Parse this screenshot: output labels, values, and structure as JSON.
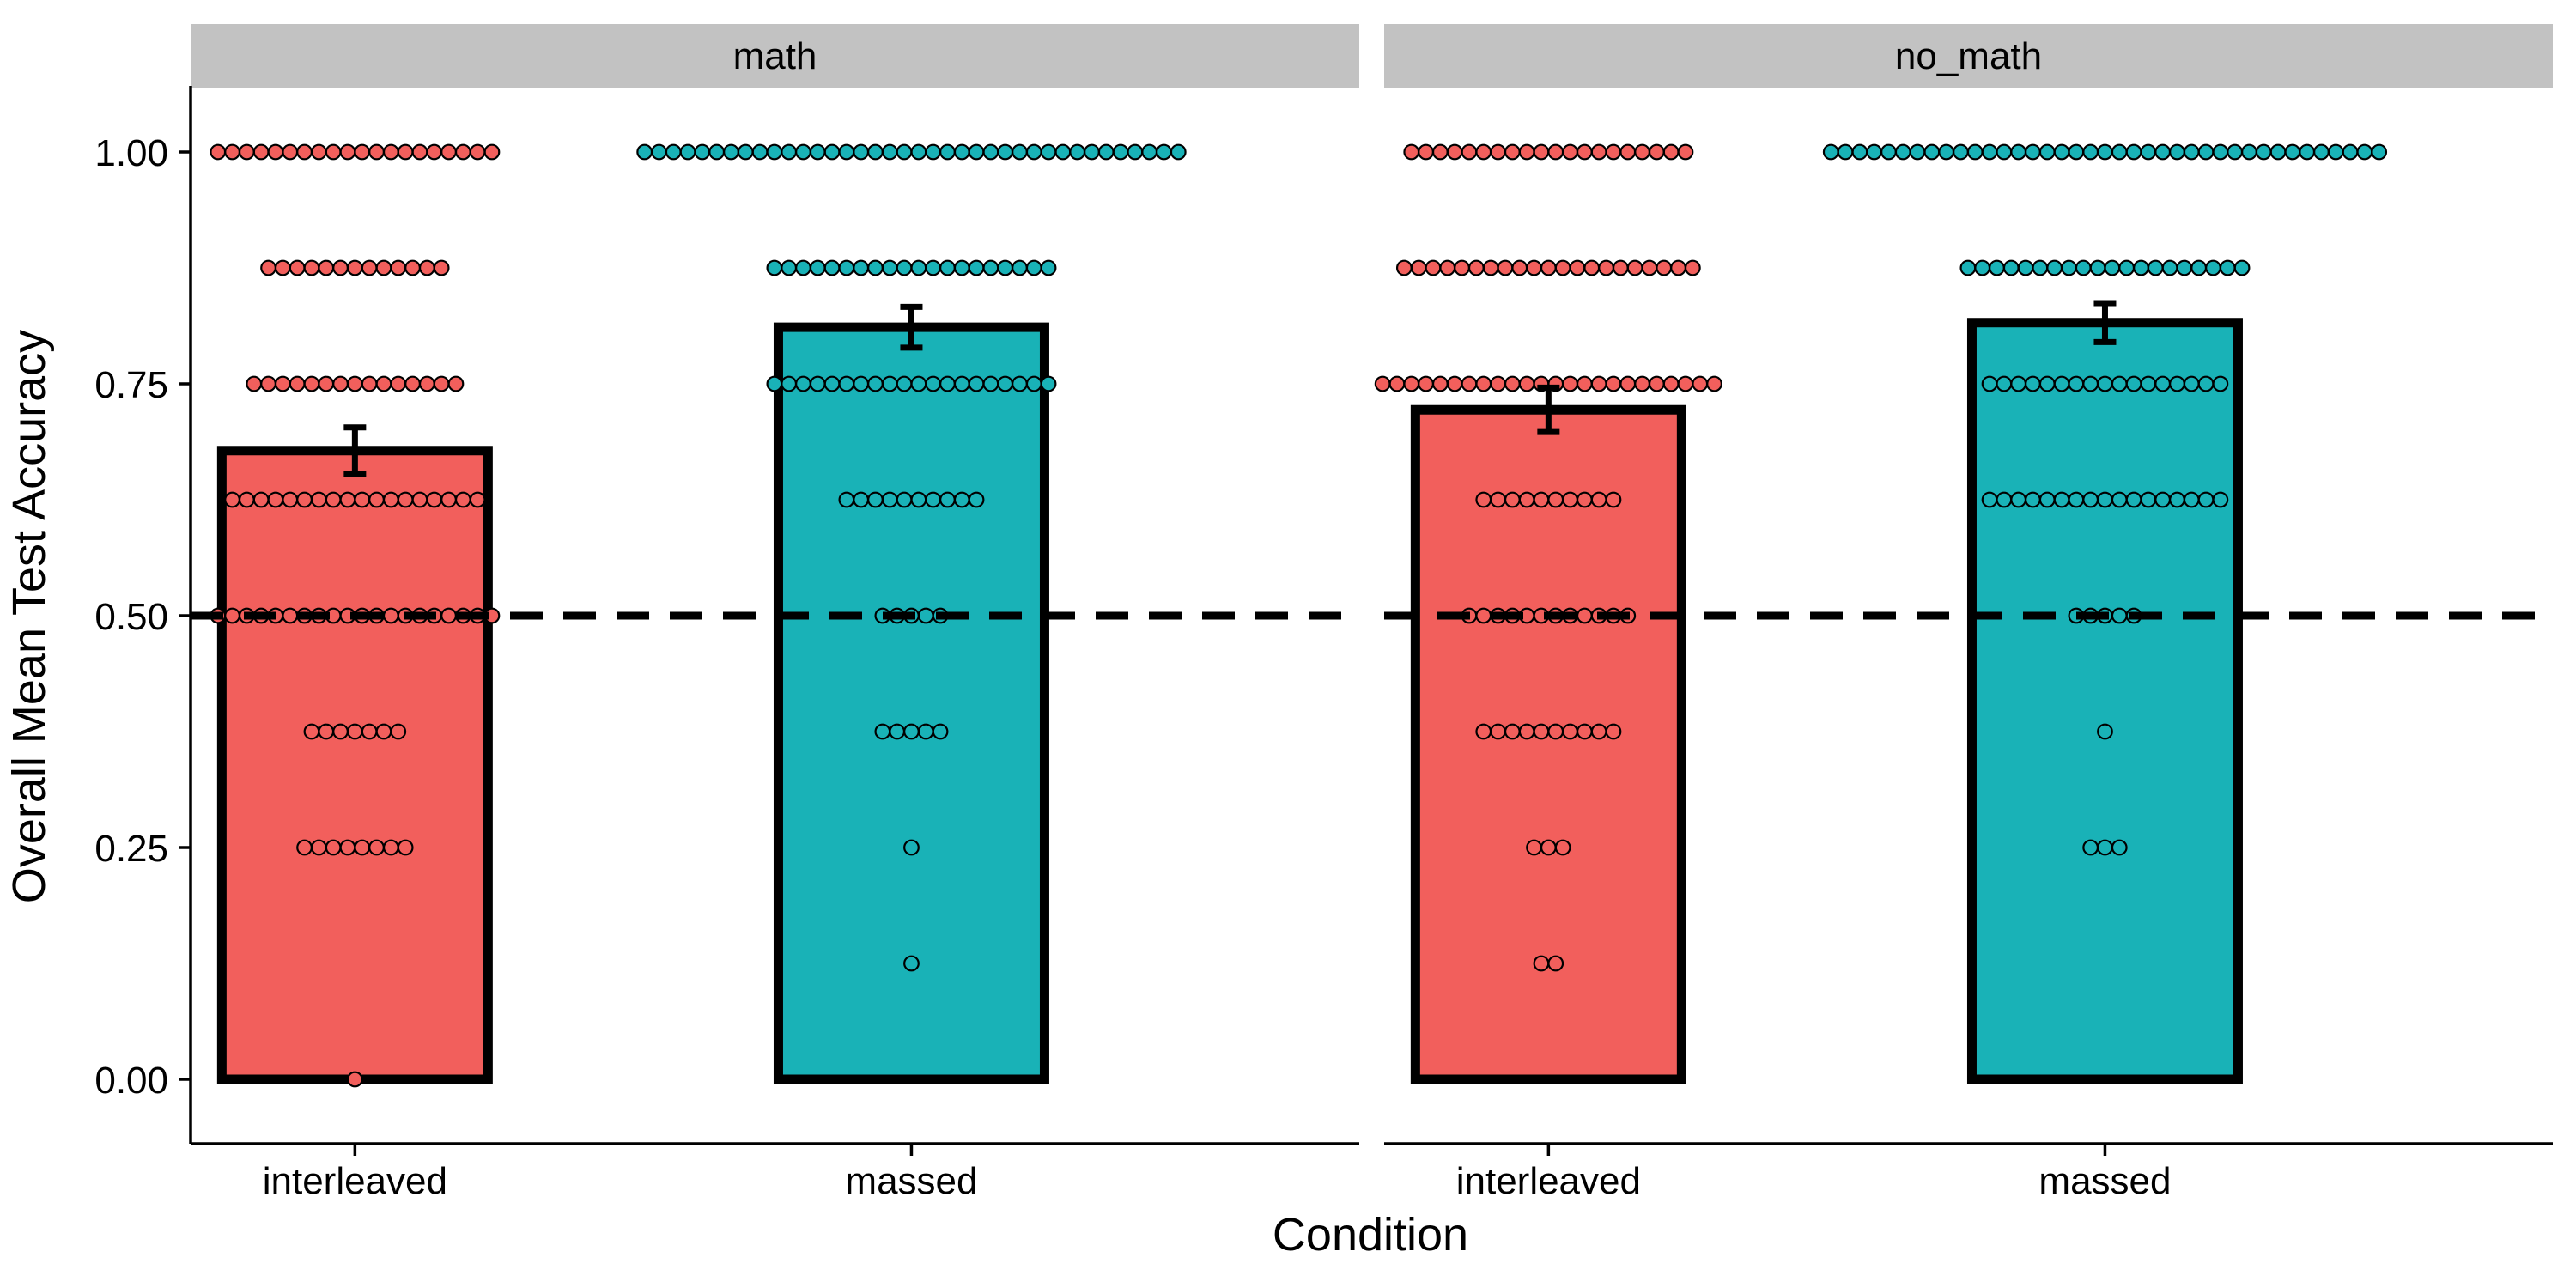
{
  "chart_data": {
    "type": "bar",
    "xlabel": "Condition",
    "ylabel": "Overall Mean Test Accuracy",
    "ylim": [
      -0.065,
      1.07
    ],
    "yticks": [
      0.0,
      0.25,
      0.5,
      0.75,
      1.0
    ],
    "ytick_labels": [
      "0.00",
      "0.25",
      "0.50",
      "0.75",
      "1.00"
    ],
    "reference_line": {
      "y": 0.5,
      "style": "dashed"
    },
    "colors": {
      "interleaved": "#F25F5C",
      "massed": "#19B2B7",
      "strip": "#C2C2C2"
    },
    "panels": [
      {
        "name": "math",
        "bars": [
          {
            "category": "interleaved",
            "mean": 0.678,
            "se_low": 0.653,
            "se_high": 0.703,
            "dots": [
              {
                "y": 1.0,
                "n": 20
              },
              {
                "y": 0.875,
                "n": 13
              },
              {
                "y": 0.75,
                "n": 15
              },
              {
                "y": 0.625,
                "n": 18
              },
              {
                "y": 0.5,
                "n": 20
              },
              {
                "y": 0.375,
                "n": 7
              },
              {
                "y": 0.25,
                "n": 8
              },
              {
                "y": 0.0,
                "n": 1
              }
            ]
          },
          {
            "category": "massed",
            "mean": 0.811,
            "se_low": 0.789,
            "se_high": 0.833,
            "dots": [
              {
                "y": 1.0,
                "n": 38
              },
              {
                "y": 0.875,
                "n": 20
              },
              {
                "y": 0.75,
                "n": 20
              },
              {
                "y": 0.625,
                "n": 10
              },
              {
                "y": 0.5,
                "n": 5
              },
              {
                "y": 0.375,
                "n": 5
              },
              {
                "y": 0.25,
                "n": 1
              },
              {
                "y": 0.125,
                "n": 1
              }
            ]
          }
        ]
      },
      {
        "name": "no_math",
        "bars": [
          {
            "category": "interleaved",
            "mean": 0.722,
            "se_low": 0.698,
            "se_high": 0.746,
            "dots": [
              {
                "y": 1.0,
                "n": 20
              },
              {
                "y": 0.875,
                "n": 21
              },
              {
                "y": 0.75,
                "n": 24
              },
              {
                "y": 0.625,
                "n": 10
              },
              {
                "y": 0.5,
                "n": 12
              },
              {
                "y": 0.375,
                "n": 10
              },
              {
                "y": 0.25,
                "n": 3
              },
              {
                "y": 0.125,
                "n": 2
              }
            ]
          },
          {
            "category": "massed",
            "mean": 0.816,
            "se_low": 0.795,
            "se_high": 0.837,
            "dots": [
              {
                "y": 1.0,
                "n": 39
              },
              {
                "y": 0.875,
                "n": 20
              },
              {
                "y": 0.75,
                "n": 17
              },
              {
                "y": 0.625,
                "n": 17
              },
              {
                "y": 0.5,
                "n": 5
              },
              {
                "y": 0.375,
                "n": 1
              },
              {
                "y": 0.25,
                "n": 3
              }
            ]
          }
        ]
      }
    ]
  }
}
